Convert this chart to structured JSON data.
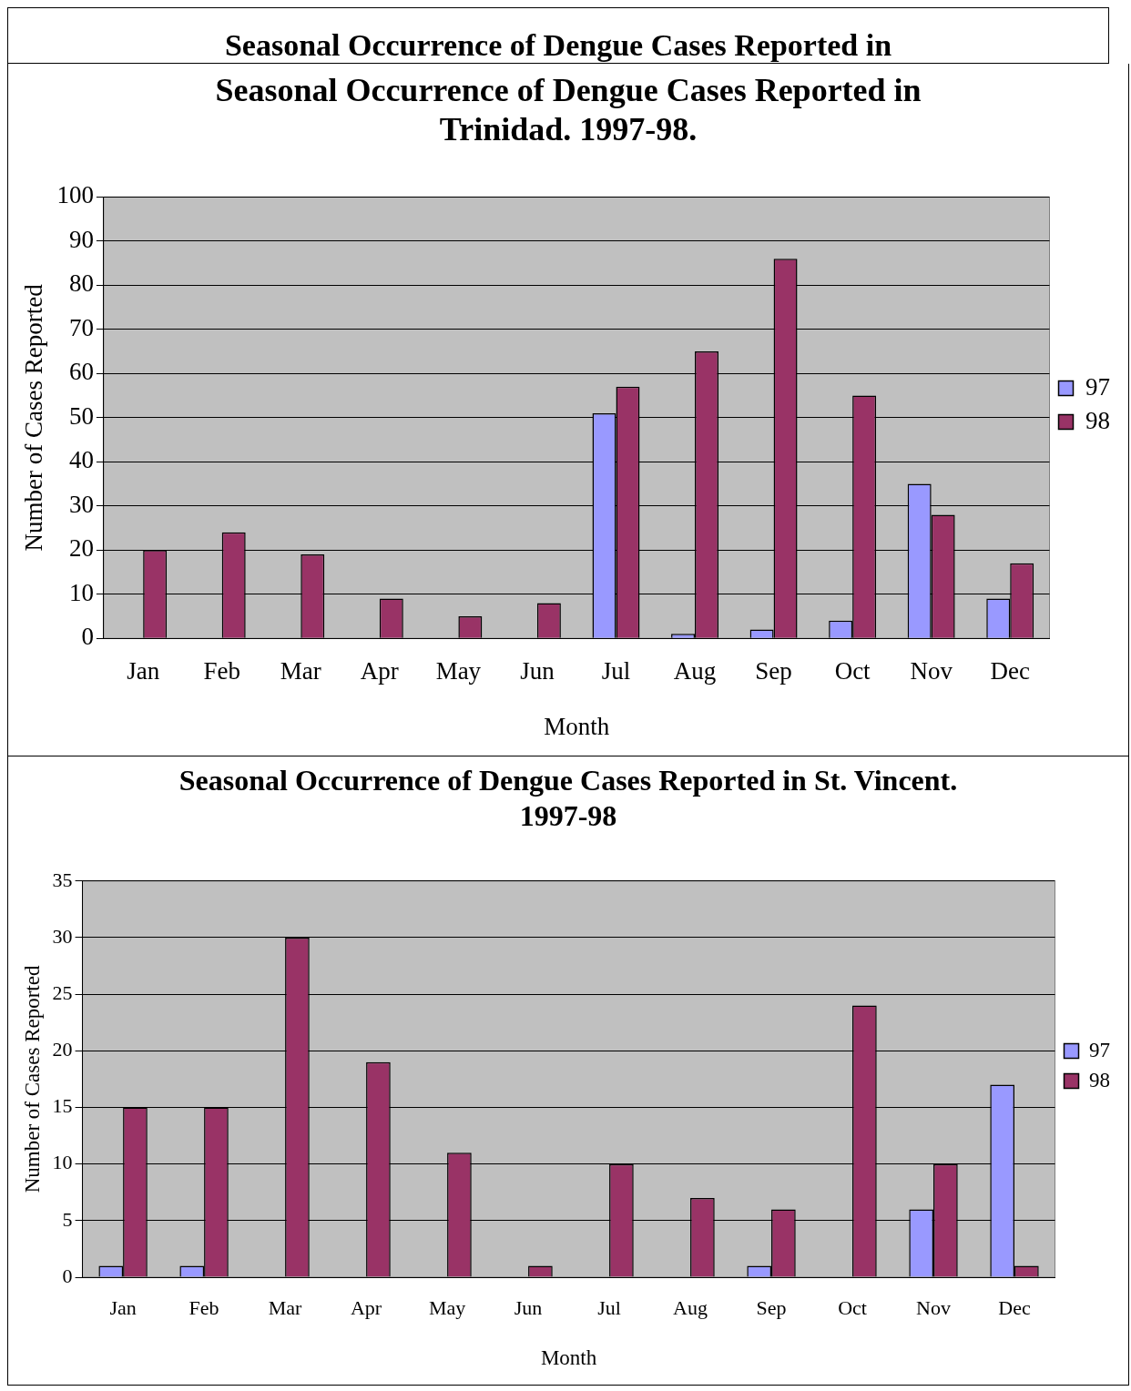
{
  "chart_data": [
    {
      "type": "other",
      "title": "Seasonal Occurrence of Dengue Cases Reported in"
    },
    {
      "type": "bar",
      "title": "Seasonal Occurrence of Dengue Cases Reported in Trinidad. 1997-98.",
      "xlabel": "Month",
      "ylabel": "Number of Cases Reported",
      "categories": [
        "Jan",
        "Feb",
        "Mar",
        "Apr",
        "May",
        "Jun",
        "Jul",
        "Aug",
        "Sep",
        "Oct",
        "Nov",
        "Dec"
      ],
      "series": [
        {
          "name": "97",
          "color": "#9999ff",
          "values": [
            null,
            null,
            null,
            null,
            null,
            null,
            51,
            1,
            2,
            4,
            35,
            9
          ]
        },
        {
          "name": "98",
          "color": "#993366",
          "values": [
            20,
            24,
            19,
            9,
            5,
            8,
            57,
            65,
            86,
            55,
            28,
            17
          ]
        }
      ],
      "ylim": [
        0,
        100
      ],
      "yticks": [
        0,
        10,
        20,
        30,
        40,
        50,
        60,
        70,
        80,
        90,
        100
      ],
      "grid": "y",
      "legend": "right"
    },
    {
      "type": "bar",
      "title": "Seasonal Occurrence of Dengue Cases Reported in St. Vincent. 1997-98",
      "xlabel": "Month",
      "ylabel": "Number of Cases Reported",
      "categories": [
        "Jan",
        "Feb",
        "Mar",
        "Apr",
        "May",
        "Jun",
        "Jul",
        "Aug",
        "Sep",
        "Oct",
        "Nov",
        "Dec"
      ],
      "series": [
        {
          "name": "97",
          "color": "#9999ff",
          "values": [
            1,
            1,
            null,
            null,
            null,
            null,
            null,
            null,
            1,
            null,
            6,
            17
          ]
        },
        {
          "name": "98",
          "color": "#993366",
          "values": [
            15,
            15,
            30,
            19,
            11,
            1,
            10,
            7,
            6,
            24,
            10,
            1
          ]
        }
      ],
      "ylim": [
        0,
        35
      ],
      "yticks": [
        0,
        5,
        10,
        15,
        20,
        25,
        30,
        35
      ],
      "grid": "y",
      "legend": "right"
    }
  ]
}
